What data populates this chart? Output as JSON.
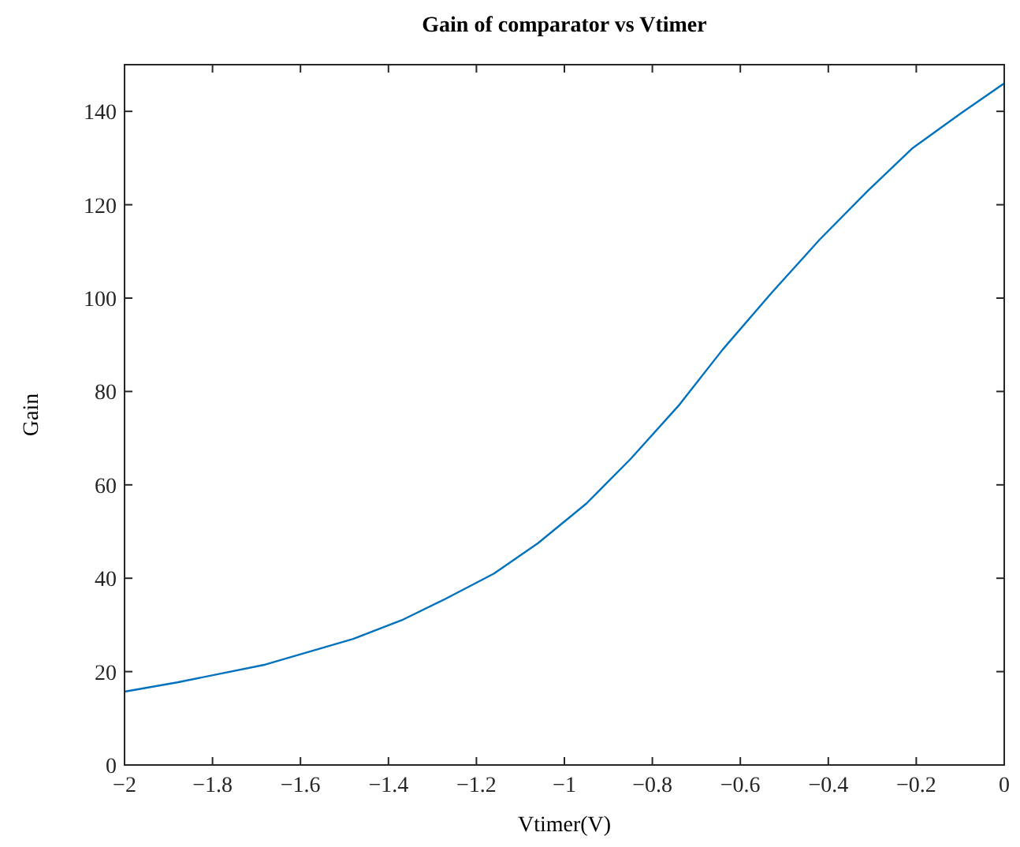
{
  "chart_data": {
    "type": "line",
    "title": "Gain of comparator vs Vtimer",
    "xlabel": "Vtimer(V)",
    "ylabel": "Gain",
    "x": [
      -2,
      -1.88,
      -1.68,
      -1.48,
      -1.37,
      -1.27,
      -1.16,
      -1.06,
      -0.95,
      -0.85,
      -0.74,
      -0.64,
      -0.53,
      -0.42,
      -0.31,
      -0.21,
      -0.1,
      0
    ],
    "series": [
      {
        "color": "#0072bd",
        "values": [
          15.7,
          17.7,
          21.5,
          27,
          31,
          35.6,
          41,
          47.5,
          56,
          65.5,
          77,
          89,
          101,
          112.5,
          123,
          132,
          139.5,
          146
        ]
      }
    ],
    "xlim": [
      -2,
      0
    ],
    "xticks": [
      {
        "value": -2,
        "label": "−2"
      },
      {
        "value": -1.8,
        "label": "−1.8"
      },
      {
        "value": -1.6,
        "label": "−1.6"
      },
      {
        "value": -1.4,
        "label": "−1.4"
      },
      {
        "value": -1.2,
        "label": "−1.2"
      },
      {
        "value": -1,
        "label": "−1"
      },
      {
        "value": -0.8,
        "label": "−0.8"
      },
      {
        "value": -0.6,
        "label": "−0.6"
      },
      {
        "value": -0.4,
        "label": "−0.4"
      },
      {
        "value": -0.2,
        "label": "−0.2"
      },
      0
    ],
    "ylim": [
      0,
      150
    ],
    "yticks": [
      0,
      20,
      40,
      60,
      80,
      100,
      120,
      140
    ],
    "grid": false,
    "marker": "none",
    "line_style": "solid"
  }
}
